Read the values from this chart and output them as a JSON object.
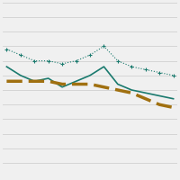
{
  "title": "",
  "background_color": "#f0f0f0",
  "grid_color": "#d0d0d0",
  "x_values": [
    0,
    1,
    2,
    3,
    4,
    5,
    6,
    7,
    8,
    9,
    10,
    11,
    12
  ],
  "teal_solid": [
    0.68,
    0.65,
    0.63,
    0.64,
    0.61,
    0.63,
    0.65,
    0.68,
    0.62,
    0.6,
    0.59,
    0.58,
    0.57
  ],
  "teal_dotted": [
    0.74,
    0.72,
    0.7,
    0.7,
    0.69,
    0.7,
    0.72,
    0.75,
    0.7,
    0.68,
    0.67,
    0.66,
    0.65
  ],
  "gold_dashed": [
    0.63,
    0.63,
    0.63,
    0.63,
    0.62,
    0.62,
    0.62,
    0.61,
    0.6,
    0.59,
    0.57,
    0.55,
    0.54
  ],
  "teal_color": "#1a7a6e",
  "gold_color": "#a07010",
  "ylim": [
    0.3,
    0.9
  ],
  "xlim": [
    -0.3,
    12.3
  ],
  "figsize": [
    2.0,
    2.0
  ],
  "dpi": 100,
  "n_grid_lines": 10
}
